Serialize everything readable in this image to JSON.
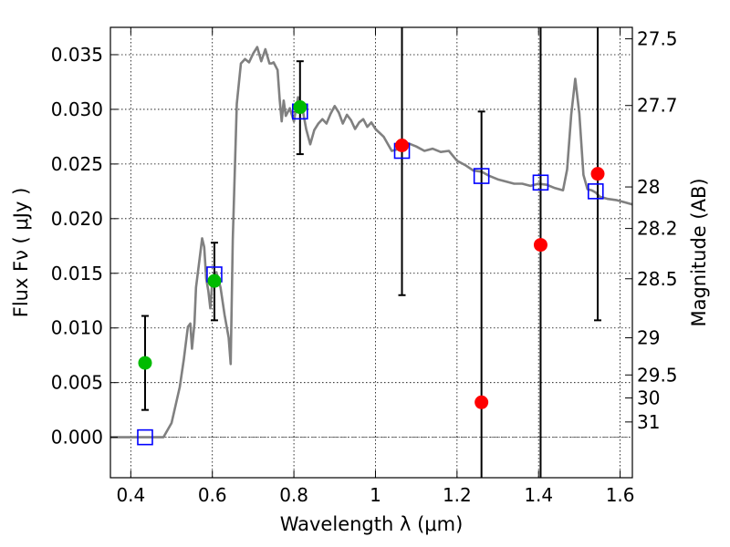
{
  "chart_data": {
    "type": "scatter",
    "title": "",
    "xlabel": "Wavelength  λ (μm)",
    "ylabel": "Flux  Fν  ( μJy )",
    "y2label": "Magnitude (AB)",
    "xlim": [
      0.35,
      1.63
    ],
    "ylim": [
      -0.0037,
      0.0375
    ],
    "grid": true,
    "xticks": [
      0.4,
      0.6,
      0.8,
      1.0,
      1.2,
      1.4,
      1.6
    ],
    "xtick_labels": [
      "0.4",
      "0.6",
      "0.8",
      "1",
      "1.2",
      "1.4",
      "1.6"
    ],
    "yticks": [
      0.0,
      0.005,
      0.01,
      0.015,
      0.02,
      0.025,
      0.03,
      0.035
    ],
    "ytick_labels": [
      "0.000",
      "0.005",
      "0.010",
      "0.015",
      "0.020",
      "0.025",
      "0.030",
      "0.035"
    ],
    "right_ticks": [
      {
        "label": "27.5",
        "flux": 0.03645
      },
      {
        "label": "27.7",
        "flux": 0.03035
      },
      {
        "label": "28",
        "flux": 0.0229
      },
      {
        "label": "28.2",
        "flux": 0.0191
      },
      {
        "label": "28.5",
        "flux": 0.0145
      },
      {
        "label": "29",
        "flux": 0.0091
      },
      {
        "label": "29.5",
        "flux": 0.0057
      },
      {
        "label": "30",
        "flux": 0.0036
      },
      {
        "label": "31",
        "flux": 0.0014
      }
    ],
    "zero_line": 0.0,
    "series": [
      {
        "kind": "line",
        "color": "#808080",
        "points": [
          [
            0.35,
            0.0
          ],
          [
            0.48,
            0.0
          ],
          [
            0.5,
            0.0013
          ],
          [
            0.52,
            0.0046
          ],
          [
            0.53,
            0.0071
          ],
          [
            0.54,
            0.0101
          ],
          [
            0.546,
            0.0104
          ],
          [
            0.55,
            0.0081
          ],
          [
            0.556,
            0.0104
          ],
          [
            0.56,
            0.0137
          ],
          [
            0.57,
            0.0167
          ],
          [
            0.575,
            0.0182
          ],
          [
            0.58,
            0.0174
          ],
          [
            0.585,
            0.0145
          ],
          [
            0.59,
            0.0134
          ],
          [
            0.595,
            0.0118
          ],
          [
            0.6,
            0.0143
          ],
          [
            0.61,
            0.0151
          ],
          [
            0.62,
            0.0137
          ],
          [
            0.63,
            0.0112
          ],
          [
            0.64,
            0.0091
          ],
          [
            0.645,
            0.0067
          ],
          [
            0.65,
            0.0181
          ],
          [
            0.66,
            0.0305
          ],
          [
            0.67,
            0.0342
          ],
          [
            0.68,
            0.0346
          ],
          [
            0.69,
            0.0343
          ],
          [
            0.7,
            0.0351
          ],
          [
            0.71,
            0.0357
          ],
          [
            0.72,
            0.0344
          ],
          [
            0.73,
            0.0355
          ],
          [
            0.74,
            0.0342
          ],
          [
            0.745,
            0.0342
          ],
          [
            0.75,
            0.0343
          ],
          [
            0.76,
            0.0336
          ],
          [
            0.765,
            0.0309
          ],
          [
            0.77,
            0.0289
          ],
          [
            0.775,
            0.0308
          ],
          [
            0.78,
            0.0294
          ],
          [
            0.79,
            0.0301
          ],
          [
            0.8,
            0.0289
          ],
          [
            0.81,
            0.0311
          ],
          [
            0.82,
            0.0303
          ],
          [
            0.83,
            0.0282
          ],
          [
            0.84,
            0.0268
          ],
          [
            0.85,
            0.0281
          ],
          [
            0.86,
            0.0287
          ],
          [
            0.87,
            0.0291
          ],
          [
            0.88,
            0.0287
          ],
          [
            0.89,
            0.0296
          ],
          [
            0.9,
            0.0303
          ],
          [
            0.91,
            0.0297
          ],
          [
            0.92,
            0.0287
          ],
          [
            0.93,
            0.0295
          ],
          [
            0.94,
            0.029
          ],
          [
            0.95,
            0.0282
          ],
          [
            0.96,
            0.0288
          ],
          [
            0.97,
            0.0291
          ],
          [
            0.98,
            0.0284
          ],
          [
            0.99,
            0.0288
          ],
          [
            1.0,
            0.0282
          ],
          [
            1.02,
            0.0275
          ],
          [
            1.04,
            0.0262
          ],
          [
            1.06,
            0.0264
          ],
          [
            1.08,
            0.0269
          ],
          [
            1.1,
            0.0266
          ],
          [
            1.12,
            0.0262
          ],
          [
            1.14,
            0.0264
          ],
          [
            1.16,
            0.0261
          ],
          [
            1.18,
            0.0262
          ],
          [
            1.2,
            0.0253
          ],
          [
            1.22,
            0.0249
          ],
          [
            1.24,
            0.0244
          ],
          [
            1.26,
            0.0243
          ],
          [
            1.28,
            0.0239
          ],
          [
            1.3,
            0.0236
          ],
          [
            1.32,
            0.0234
          ],
          [
            1.34,
            0.0232
          ],
          [
            1.36,
            0.0232
          ],
          [
            1.38,
            0.023
          ],
          [
            1.4,
            0.0232
          ],
          [
            1.42,
            0.0231
          ],
          [
            1.44,
            0.0228
          ],
          [
            1.46,
            0.0226
          ],
          [
            1.47,
            0.0245
          ],
          [
            1.48,
            0.0295
          ],
          [
            1.49,
            0.0328
          ],
          [
            1.5,
            0.0296
          ],
          [
            1.51,
            0.024
          ],
          [
            1.52,
            0.0227
          ],
          [
            1.53,
            0.0226
          ],
          [
            1.54,
            0.0224
          ],
          [
            1.55,
            0.022
          ],
          [
            1.57,
            0.0218
          ],
          [
            1.59,
            0.0217
          ],
          [
            1.61,
            0.0215
          ],
          [
            1.63,
            0.0213
          ]
        ]
      },
      {
        "kind": "squares",
        "color": "#0000ff",
        "points": [
          [
            0.435,
            0.0
          ],
          [
            0.605,
            0.0149
          ],
          [
            0.815,
            0.0298
          ],
          [
            1.065,
            0.0262
          ],
          [
            1.26,
            0.0239
          ],
          [
            1.405,
            0.0233
          ],
          [
            1.54,
            0.0225
          ]
        ]
      },
      {
        "kind": "circles",
        "color": "#00bb00",
        "points": [
          [
            0.435,
            0.0068
          ],
          [
            0.605,
            0.0143
          ],
          [
            0.815,
            0.0302
          ]
        ]
      },
      {
        "kind": "circles",
        "color": "#ff0000",
        "points": [
          [
            1.065,
            0.0267
          ],
          [
            1.26,
            0.0032
          ],
          [
            1.405,
            0.0176
          ],
          [
            1.545,
            0.0241
          ]
        ]
      }
    ],
    "error_bars": [
      {
        "x": 0.435,
        "low": 0.0025,
        "high": 0.0111
      },
      {
        "x": 0.605,
        "low": 0.0107,
        "high": 0.0178
      },
      {
        "x": 0.815,
        "low": 0.0259,
        "high": 0.0344
      },
      {
        "x": 1.065,
        "low": 0.013,
        "high": 0.0375
      },
      {
        "x": 1.26,
        "low": -0.0037,
        "high": 0.0298
      },
      {
        "x": 1.405,
        "low": -0.0037,
        "high": 0.0375
      },
      {
        "x": 1.545,
        "low": 0.0107,
        "high": 0.0375
      }
    ]
  }
}
